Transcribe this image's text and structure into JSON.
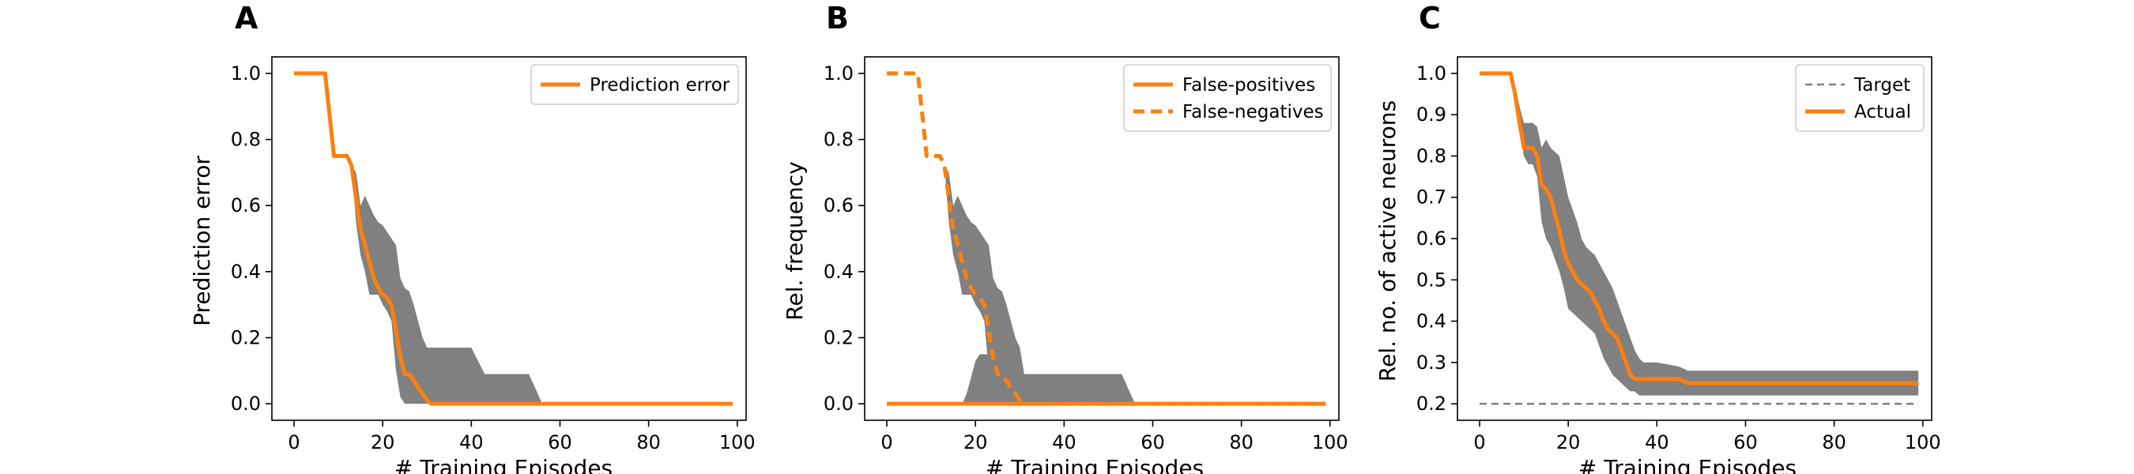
{
  "chart_data": [
    {
      "panel": "A",
      "type": "line",
      "xlabel": "# Training Episodes",
      "ylabel": "Prediction error",
      "xlim": [
        -5,
        102
      ],
      "ylim": [
        -0.05,
        1.05
      ],
      "xticks": [
        0,
        20,
        40,
        60,
        80,
        100
      ],
      "yticks": [
        0.0,
        0.2,
        0.4,
        0.6,
        0.8,
        1.0
      ],
      "ytick_labels": [
        "0.0",
        "0.2",
        "0.4",
        "0.6",
        "0.8",
        "1.0"
      ],
      "grid": false,
      "legend_position": "top-right",
      "band_color": "#808080",
      "bands": [
        {
          "x": [
            0,
            7,
            9,
            12,
            13,
            14,
            15,
            16,
            17,
            18,
            19,
            20,
            21,
            22,
            23,
            24,
            25,
            26,
            27,
            28,
            29,
            30,
            31,
            35,
            40,
            43,
            53,
            56,
            60,
            80,
            99
          ],
          "upper": [
            1.0,
            1.0,
            0.75,
            0.75,
            0.72,
            0.7,
            0.6,
            0.63,
            0.6,
            0.57,
            0.55,
            0.54,
            0.52,
            0.5,
            0.48,
            0.38,
            0.35,
            0.34,
            0.3,
            0.25,
            0.2,
            0.17,
            0.17,
            0.17,
            0.17,
            0.09,
            0.09,
            0.0,
            0.0,
            0.0,
            0.0
          ],
          "lower": [
            1.0,
            1.0,
            0.75,
            0.75,
            0.72,
            0.55,
            0.45,
            0.4,
            0.33,
            0.33,
            0.33,
            0.3,
            0.28,
            0.25,
            0.1,
            0.02,
            0.0,
            0.0,
            0.0,
            0.0,
            0.0,
            0.0,
            0.0,
            0.0,
            0.0,
            0.0,
            0.0,
            0.0,
            0.0,
            0.0,
            0.0
          ]
        }
      ],
      "series": [
        {
          "name": "Prediction error",
          "color": "#ff7f0e",
          "style": "solid",
          "x": [
            0,
            7,
            9,
            12,
            13,
            14,
            15,
            16,
            17,
            18,
            19,
            20,
            21,
            22,
            23,
            24,
            25,
            26,
            27,
            28,
            29,
            30,
            31,
            40,
            60,
            80,
            99
          ],
          "y": [
            1.0,
            1.0,
            0.75,
            0.75,
            0.72,
            0.62,
            0.53,
            0.48,
            0.43,
            0.38,
            0.35,
            0.33,
            0.32,
            0.3,
            0.22,
            0.14,
            0.09,
            0.09,
            0.07,
            0.05,
            0.03,
            0.01,
            0.0,
            0.0,
            0.0,
            0.0,
            0.0
          ]
        }
      ],
      "legend": [
        "Prediction error"
      ]
    },
    {
      "panel": "B",
      "type": "line",
      "xlabel": "# Training Episodes",
      "ylabel": "Rel. frequency",
      "xlim": [
        -5,
        102
      ],
      "ylim": [
        -0.05,
        1.05
      ],
      "xticks": [
        0,
        20,
        40,
        60,
        80,
        100
      ],
      "yticks": [
        0.0,
        0.2,
        0.4,
        0.6,
        0.8,
        1.0
      ],
      "ytick_labels": [
        "0.0",
        "0.2",
        "0.4",
        "0.6",
        "0.8",
        "1.0"
      ],
      "grid": false,
      "legend_position": "top-right",
      "band_color": "#808080",
      "bands": [
        {
          "x": [
            0,
            7,
            9,
            12,
            13,
            14,
            15,
            16,
            17,
            18,
            19,
            20,
            21,
            22,
            23,
            24,
            25,
            26,
            27,
            28,
            29,
            30,
            31,
            35,
            40,
            43,
            53,
            56,
            60,
            80,
            99
          ],
          "upper": [
            1.0,
            1.0,
            0.75,
            0.75,
            0.72,
            0.7,
            0.6,
            0.63,
            0.6,
            0.57,
            0.55,
            0.54,
            0.52,
            0.5,
            0.48,
            0.38,
            0.35,
            0.34,
            0.3,
            0.25,
            0.2,
            0.17,
            0.09,
            0.09,
            0.09,
            0.09,
            0.09,
            0.0,
            0.0,
            0.0,
            0.0
          ],
          "lower": [
            1.0,
            1.0,
            0.75,
            0.75,
            0.72,
            0.55,
            0.45,
            0.4,
            0.33,
            0.33,
            0.33,
            0.3,
            0.28,
            0.25,
            0.1,
            0.02,
            0.0,
            0.0,
            0.0,
            0.0,
            0.0,
            0.0,
            0.0,
            0.0,
            0.0,
            0.0,
            0.0,
            0.0,
            0.0,
            0.0,
            0.0
          ]
        },
        {
          "x": [
            0,
            17,
            18,
            19,
            20,
            21,
            22,
            23,
            24,
            25,
            26,
            27,
            28,
            29,
            30,
            31,
            35,
            40,
            99
          ],
          "upper": [
            0.0,
            0.0,
            0.03,
            0.08,
            0.13,
            0.15,
            0.15,
            0.15,
            0.13,
            0.1,
            0.08,
            0.06,
            0.04,
            0.02,
            0.01,
            0.0,
            0.0,
            0.0,
            0.0
          ],
          "lower": [
            0.0,
            0.0,
            0.0,
            0.0,
            0.0,
            0.0,
            0.0,
            0.0,
            0.0,
            0.0,
            0.0,
            0.0,
            0.0,
            0.0,
            0.0,
            0.0,
            0.0,
            0.0,
            0.0
          ]
        }
      ],
      "series": [
        {
          "name": "False-positives",
          "color": "#ff7f0e",
          "style": "solid",
          "x": [
            0,
            20,
            40,
            60,
            80,
            99
          ],
          "y": [
            0.0,
            0.0,
            0.0,
            0.0,
            0.0,
            0.0
          ]
        },
        {
          "name": "False-negatives",
          "color": "#ff7f0e",
          "style": "dashed",
          "x": [
            0,
            7,
            9,
            12,
            13,
            14,
            15,
            16,
            17,
            18,
            19,
            20,
            21,
            22,
            23,
            24,
            25,
            26,
            27,
            28,
            29,
            30,
            31,
            40,
            60,
            80,
            99
          ],
          "y": [
            1.0,
            1.0,
            0.75,
            0.75,
            0.72,
            0.62,
            0.53,
            0.48,
            0.43,
            0.38,
            0.35,
            0.33,
            0.32,
            0.3,
            0.22,
            0.14,
            0.09,
            0.09,
            0.07,
            0.05,
            0.03,
            0.01,
            0.0,
            0.0,
            0.0,
            0.0,
            0.0
          ]
        }
      ],
      "legend": [
        "False-positives",
        "False-negatives"
      ]
    },
    {
      "panel": "C",
      "type": "line",
      "xlabel": "# Training Episodes",
      "ylabel": "Rel. no. of active neurons",
      "xlim": [
        -5,
        102
      ],
      "ylim": [
        0.16,
        1.04
      ],
      "xticks": [
        0,
        20,
        40,
        60,
        80,
        100
      ],
      "yticks": [
        0.2,
        0.3,
        0.4,
        0.5,
        0.6,
        0.7,
        0.8,
        0.9,
        1.0
      ],
      "ytick_labels": [
        "0.2",
        "0.3",
        "0.4",
        "0.5",
        "0.6",
        "0.7",
        "0.8",
        "0.9",
        "1.0"
      ],
      "grid": false,
      "legend_position": "top-right",
      "band_color": "#808080",
      "bands": [
        {
          "x": [
            0,
            7,
            8,
            9,
            10,
            11,
            12,
            13,
            14,
            15,
            16,
            17,
            18,
            19,
            20,
            21,
            22,
            23,
            24,
            25,
            26,
            27,
            28,
            29,
            30,
            31,
            32,
            33,
            34,
            35,
            36,
            37,
            38,
            40,
            45,
            47,
            50,
            60,
            80,
            99
          ],
          "upper": [
            1.0,
            1.0,
            0.97,
            0.92,
            0.88,
            0.88,
            0.88,
            0.87,
            0.82,
            0.84,
            0.82,
            0.81,
            0.8,
            0.75,
            0.7,
            0.67,
            0.64,
            0.6,
            0.58,
            0.57,
            0.56,
            0.54,
            0.52,
            0.5,
            0.48,
            0.45,
            0.42,
            0.39,
            0.36,
            0.33,
            0.31,
            0.3,
            0.3,
            0.3,
            0.29,
            0.28,
            0.28,
            0.28,
            0.28,
            0.28
          ],
          "lower": [
            1.0,
            1.0,
            0.94,
            0.86,
            0.8,
            0.78,
            0.78,
            0.75,
            0.64,
            0.6,
            0.58,
            0.55,
            0.52,
            0.48,
            0.43,
            0.42,
            0.41,
            0.4,
            0.39,
            0.38,
            0.37,
            0.34,
            0.31,
            0.29,
            0.27,
            0.26,
            0.25,
            0.24,
            0.23,
            0.23,
            0.22,
            0.22,
            0.22,
            0.22,
            0.22,
            0.22,
            0.22,
            0.22,
            0.22,
            0.22
          ]
        }
      ],
      "series": [
        {
          "name": "Target",
          "color": "#808080",
          "style": "dashed",
          "x": [
            0,
            99
          ],
          "y": [
            0.2,
            0.2
          ]
        },
        {
          "name": "Actual",
          "color": "#ff7f0e",
          "style": "solid",
          "x": [
            0,
            7,
            8,
            9,
            10,
            11,
            12,
            13,
            14,
            15,
            16,
            17,
            18,
            19,
            20,
            21,
            22,
            23,
            24,
            25,
            26,
            27,
            28,
            29,
            30,
            31,
            32,
            33,
            34,
            35,
            36,
            38,
            40,
            45,
            47,
            60,
            80,
            99
          ],
          "y": [
            1.0,
            1.0,
            0.95,
            0.88,
            0.82,
            0.82,
            0.82,
            0.8,
            0.73,
            0.72,
            0.7,
            0.66,
            0.62,
            0.57,
            0.54,
            0.52,
            0.5,
            0.49,
            0.48,
            0.47,
            0.45,
            0.43,
            0.4,
            0.38,
            0.37,
            0.36,
            0.33,
            0.3,
            0.27,
            0.26,
            0.26,
            0.26,
            0.26,
            0.26,
            0.25,
            0.25,
            0.25,
            0.25
          ]
        }
      ],
      "legend": [
        "Target",
        "Actual"
      ]
    }
  ]
}
